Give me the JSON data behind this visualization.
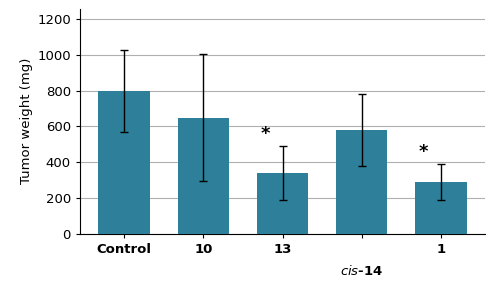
{
  "categories": [
    "Control",
    "10",
    "13",
    "cis-14",
    "1"
  ],
  "values": [
    800,
    650,
    340,
    580,
    290
  ],
  "errors": [
    230,
    355,
    150,
    200,
    100
  ],
  "bar_color": "#2e7f9a",
  "ylabel": "Tumor weight (mg)",
  "ylim": [
    0,
    1260
  ],
  "yticks": [
    0,
    200,
    400,
    600,
    800,
    1000,
    1200
  ],
  "significant": [
    false,
    false,
    true,
    false,
    true
  ],
  "background_color": "#ffffff",
  "grid_color": "#b0b0b0",
  "bar_width": 0.65
}
